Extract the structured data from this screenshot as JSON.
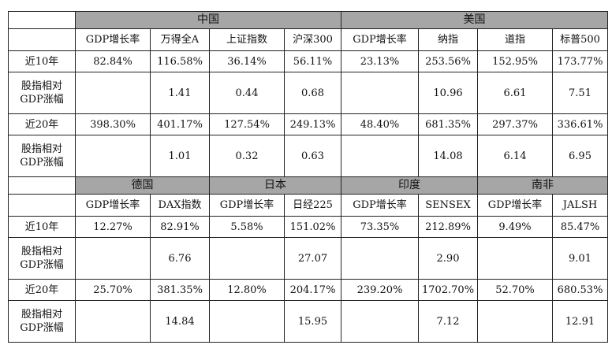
{
  "tables": [
    {
      "groups": [
        {
          "label": "中国",
          "span": 4
        },
        {
          "label": "美国",
          "span": 4
        }
      ],
      "columns": [
        "GDP增长率",
        "万得全A",
        "上证指数",
        "沪深300",
        "GDP增长率",
        "纳指",
        "道指",
        "标普500"
      ],
      "rows": [
        {
          "label": "近10年",
          "values": [
            "82.84%",
            "116.58%",
            "36.14%",
            "56.11%",
            "23.13%",
            "253.56%",
            "152.95%",
            "173.77%"
          ]
        },
        {
          "label": "股指相对GDP涨幅",
          "values": [
            "",
            "1.41",
            "0.44",
            "0.68",
            "",
            "10.96",
            "6.61",
            "7.51"
          ]
        },
        {
          "label": "近20年",
          "values": [
            "398.30%",
            "401.17%",
            "127.54%",
            "249.13%",
            "48.40%",
            "681.35%",
            "297.37%",
            "336.61%"
          ]
        },
        {
          "label": "股指相对GDP涨幅",
          "values": [
            "",
            "1.01",
            "0.32",
            "0.63",
            "",
            "14.08",
            "6.14",
            "6.95"
          ]
        }
      ]
    },
    {
      "groups": [
        {
          "label": "德国",
          "span": 2
        },
        {
          "label": "日本",
          "span": 2
        },
        {
          "label": "印度",
          "span": 2
        },
        {
          "label": "南非",
          "span": 2
        }
      ],
      "columns": [
        "GDP增长率",
        "DAX指数",
        "GDP增长率",
        "日经225",
        "GDP增长率",
        "SENSEX",
        "GDP增长率",
        "JALSH"
      ],
      "rows": [
        {
          "label": "近10年",
          "values": [
            "12.27%",
            "82.91%",
            "5.58%",
            "151.02%",
            "73.35%",
            "212.89%",
            "9.49%",
            "85.47%"
          ]
        },
        {
          "label": "股指相对GDP涨幅",
          "values": [
            "",
            "6.76",
            "",
            "27.07",
            "",
            "2.90",
            "",
            "9.01"
          ]
        },
        {
          "label": "近20年",
          "values": [
            "25.70%",
            "381.35%",
            "12.80%",
            "204.17%",
            "239.20%",
            "1702.70%",
            "52.70%",
            "680.53%"
          ]
        },
        {
          "label": "股指相对GDP涨幅",
          "values": [
            "",
            "14.84",
            "",
            "15.95",
            "",
            "7.12",
            "",
            "12.91"
          ]
        }
      ]
    }
  ],
  "colors": {
    "group_header_bg": "#a6a6a6",
    "border": "#222222"
  }
}
